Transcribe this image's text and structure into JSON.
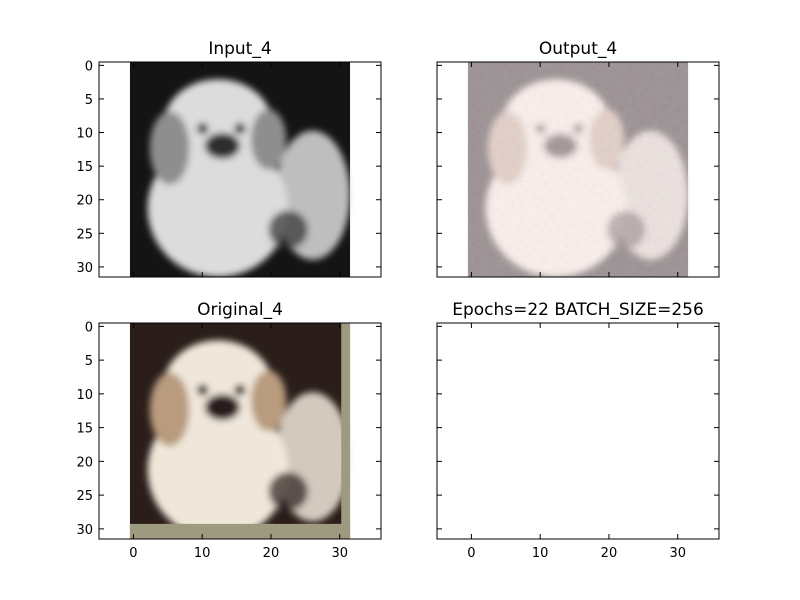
{
  "figure": {
    "panels": [
      {
        "id": "input",
        "title": "Input_4",
        "image": "grayscale-dog"
      },
      {
        "id": "output",
        "title": "Output_4",
        "image": "color-dog-noisy"
      },
      {
        "id": "original",
        "title": "Original_4",
        "image": "color-dog"
      },
      {
        "id": "empty",
        "title": "Epochs=22 BATCH_SIZE=256",
        "image": "none"
      }
    ]
  },
  "chart_data": {
    "type": "image-grid",
    "xlim": [
      -5,
      36
    ],
    "ylim": [
      31.5,
      -0.5
    ],
    "xticks": [
      0,
      10,
      20,
      30
    ],
    "yticks": [
      0,
      5,
      10,
      15,
      20,
      25,
      30
    ],
    "image_extent": [
      -0.5,
      31.5,
      31.5,
      -0.5
    ],
    "colors": {
      "bw_bg": "#141414",
      "bw_dog": "#dcdcdc",
      "out_bg": "#2a221f",
      "out_dog": "#efe6d6",
      "orig_bg": "#2b1e1a",
      "orig_dog": "#f0e7da",
      "orig_border": "#9e9a7f",
      "ear": "#b99b7e"
    }
  }
}
